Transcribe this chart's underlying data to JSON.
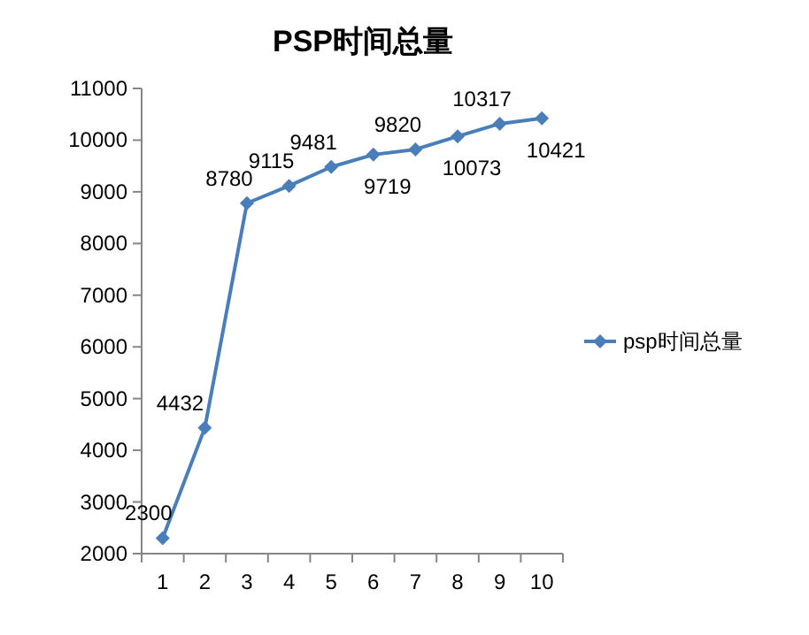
{
  "chart_data": {
    "type": "line",
    "title": "PSP时间总量",
    "categories": [
      "1",
      "2",
      "3",
      "4",
      "5",
      "6",
      "7",
      "8",
      "9",
      "10"
    ],
    "series": [
      {
        "name": "psp时间总量",
        "color": "#4a7ebb",
        "values": [
          2300,
          4432,
          8780,
          9115,
          9481,
          9719,
          9820,
          10073,
          10317,
          10421
        ]
      }
    ],
    "ylim": [
      2000,
      11000
    ],
    "yticks": [
      2000,
      3000,
      4000,
      5000,
      6000,
      7000,
      8000,
      9000,
      10000,
      11000
    ],
    "grid": false,
    "legend": "right",
    "marker": "diamond",
    "line_style": "solid",
    "data_labels": true
  }
}
